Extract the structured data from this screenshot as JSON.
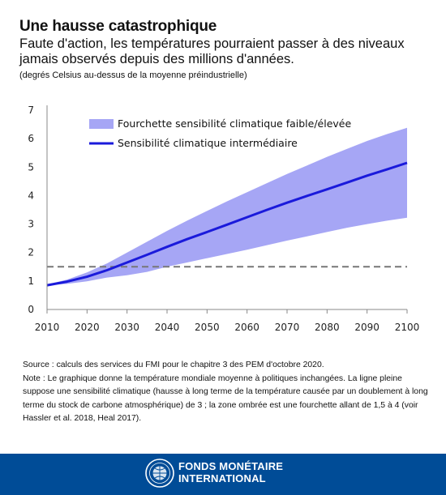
{
  "header": {
    "title": "Une hausse catastrophique",
    "subtitle": "Faute d'action, les températures pourraient passer à des niveaux jamais observés depuis des millions d'années.",
    "units": "(degrés Celsius au-dessus de la moyenne préindustrielle)"
  },
  "chart_data": {
    "type": "line",
    "title": "",
    "xlabel": "",
    "ylabel": "",
    "xlim": [
      2010,
      2100
    ],
    "ylim": [
      0,
      7
    ],
    "x_ticks": [
      2010,
      2020,
      2030,
      2040,
      2050,
      2060,
      2070,
      2080,
      2090,
      2100
    ],
    "y_ticks": [
      0,
      1,
      2,
      3,
      4,
      5,
      6,
      7
    ],
    "grid": false,
    "legend_position": "top-left",
    "x": [
      2010,
      2015,
      2020,
      2025,
      2030,
      2035,
      2040,
      2045,
      2050,
      2055,
      2060,
      2065,
      2070,
      2075,
      2080,
      2085,
      2090,
      2095,
      2100
    ],
    "series": [
      {
        "name": "Sensibilité climatique intermédiaire",
        "kind": "line",
        "color": "#1a1adb",
        "values": [
          0.85,
          0.98,
          1.15,
          1.38,
          1.65,
          1.92,
          2.2,
          2.47,
          2.72,
          2.98,
          3.24,
          3.5,
          3.75,
          3.99,
          4.22,
          4.46,
          4.7,
          4.92,
          5.15
        ]
      },
      {
        "name": "Fourchette sensibilité climatique faible/élevée",
        "kind": "band",
        "color": "#a6a6f5",
        "lower": [
          0.85,
          0.9,
          0.99,
          1.12,
          1.2,
          1.32,
          1.5,
          1.65,
          1.8,
          1.95,
          2.1,
          2.26,
          2.42,
          2.57,
          2.72,
          2.87,
          3.0,
          3.12,
          3.22
        ],
        "upper": [
          0.88,
          1.05,
          1.3,
          1.62,
          2.0,
          2.38,
          2.76,
          3.12,
          3.46,
          3.8,
          4.12,
          4.44,
          4.76,
          5.06,
          5.36,
          5.64,
          5.92,
          6.16,
          6.38
        ]
      }
    ],
    "reference_line": {
      "value": 1.5,
      "style": "dashed",
      "color": "#777777"
    }
  },
  "notes": {
    "source": "Source : calculs des services du FMI pour le chapitre 3 des PEM d'octobre 2020.",
    "note": "Note : Le graphique donne la température mondiale moyenne à politiques inchangées. La ligne pleine suppose une sensibilité climatique (hausse à long terme de la température causée par un doublement à long terme du stock de carbone atmosphérique) de 3 ; la zone ombrée est une fourchette allant de 1,5 à 4 (voir Hassler et al. 2018, Heal 2017)."
  },
  "footer": {
    "org_line1": "FONDS MONÉTAIRE",
    "org_line2": "INTERNATIONAL",
    "bg_color": "#004c97",
    "logo": "imf-seal-icon"
  }
}
